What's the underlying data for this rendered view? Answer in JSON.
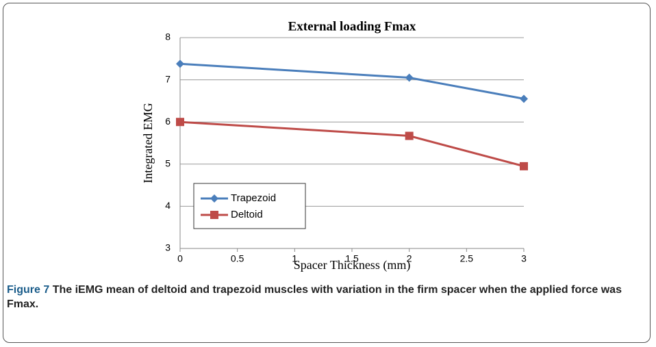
{
  "chart_data": {
    "type": "line",
    "title": "External loading Fmax",
    "x_label": "Spacer Thickness  (mm)",
    "y_label": "Integrated  EMG",
    "x": [
      0,
      2,
      3
    ],
    "series": [
      {
        "name": "Trapezoid",
        "color": "#4a7ebb",
        "marker": "diamond",
        "values": [
          7.38,
          7.05,
          6.55
        ]
      },
      {
        "name": "Deltoid",
        "color": "#be4b48",
        "marker": "square",
        "values": [
          6.0,
          5.67,
          4.95
        ]
      }
    ],
    "xlim": [
      0,
      3
    ],
    "xticks": [
      0,
      0.5,
      1,
      1.5,
      2,
      2.5,
      3
    ],
    "ylim": [
      3,
      8
    ],
    "yticks": [
      3,
      4,
      5,
      6,
      7,
      8
    ],
    "grid": true,
    "legend": "center left"
  },
  "caption": {
    "label": "Figure 7",
    "text": "The iEMG mean of deltoid and trapezoid muscles with variation in the firm spacer when the applied force was Fmax."
  }
}
